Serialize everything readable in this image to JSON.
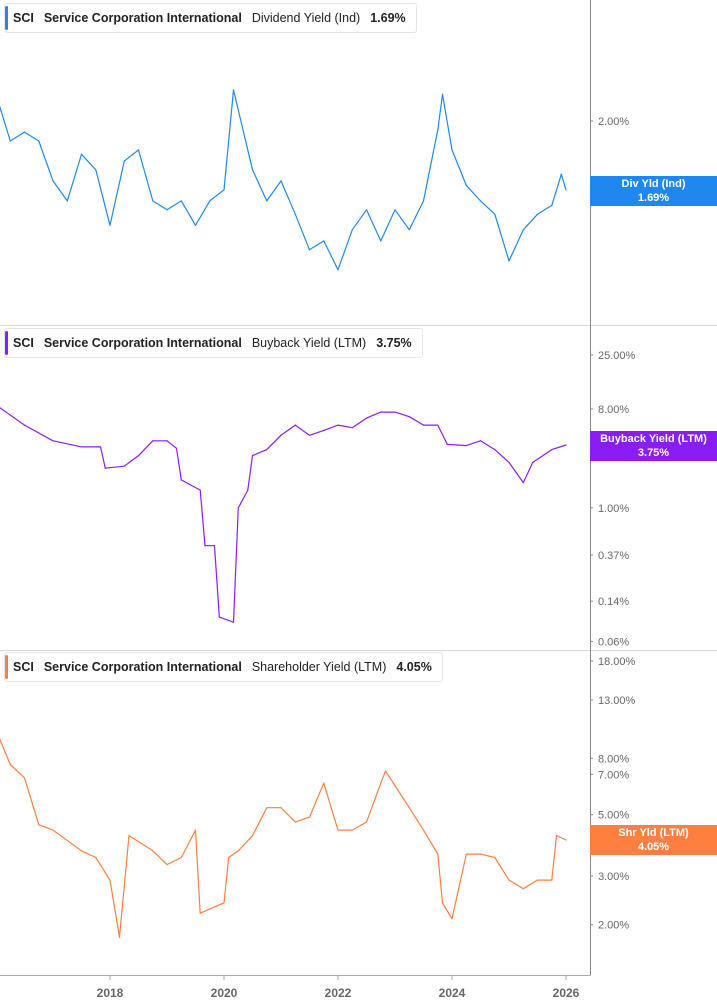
{
  "ticker": "SCI",
  "company": "Service Corporation International",
  "colors": {
    "dividend": "#1e88f0",
    "buyback": "#8a1cf5",
    "shareholder": "#ff7f3f"
  },
  "chart_data": [
    {
      "type": "line",
      "metric": "Dividend Yield (Ind)",
      "current_value": "1.69%",
      "axis_tag": "Div Yld (Ind)",
      "y_scale": "linear",
      "yticks": [
        {
          "v": 2.0,
          "label": "2.00%"
        }
      ],
      "xticks": [
        "2018",
        "2020",
        "2022",
        "2024",
        "2026"
      ],
      "x": [
        "2016-01",
        "2016-04",
        "2016-07",
        "2016-10",
        "2017-01",
        "2017-04",
        "2017-07",
        "2017-10",
        "2018-01",
        "2018-04",
        "2018-07",
        "2018-10",
        "2019-01",
        "2019-04",
        "2019-07",
        "2019-10",
        "2020-01",
        "2020-03",
        "2020-07",
        "2020-10",
        "2021-01",
        "2021-04",
        "2021-07",
        "2021-10",
        "2022-01",
        "2022-04",
        "2022-07",
        "2022-10",
        "2023-01",
        "2023-04",
        "2023-07",
        "2023-10",
        "2023-11",
        "2024-01",
        "2024-04",
        "2024-07",
        "2024-10",
        "2025-01",
        "2025-04",
        "2025-07",
        "2025-10",
        "2025-12",
        "2026-01"
      ],
      "values": [
        2.12,
        1.91,
        1.95,
        1.91,
        1.73,
        1.64,
        1.85,
        1.78,
        1.53,
        1.82,
        1.87,
        1.64,
        1.6,
        1.64,
        1.53,
        1.64,
        1.69,
        2.14,
        1.78,
        1.64,
        1.73,
        1.58,
        1.42,
        1.46,
        1.33,
        1.51,
        1.6,
        1.46,
        1.6,
        1.51,
        1.64,
        1.96,
        2.12,
        1.87,
        1.71,
        1.64,
        1.58,
        1.37,
        1.51,
        1.58,
        1.62,
        1.76,
        1.69
      ]
    },
    {
      "type": "line",
      "metric": "Buyback Yield (LTM)",
      "current_value": "3.75%",
      "axis_tag": "Buyback Yield (LTM)",
      "y_scale": "log",
      "yticks": [
        {
          "v": 25,
          "label": "25.00%"
        },
        {
          "v": 8,
          "label": "8.00%"
        },
        {
          "v": 3,
          "label": "3.00%"
        },
        {
          "v": 1,
          "label": "1.00%"
        },
        {
          "v": 0.37,
          "label": "0.37%"
        },
        {
          "v": 0.14,
          "label": "0.14%"
        },
        {
          "v": 0.06,
          "label": "0.06%"
        }
      ],
      "x": [
        "2016-01",
        "2016-07",
        "2017-01",
        "2017-07",
        "2017-11",
        "2017-12",
        "2018-04",
        "2018-07",
        "2018-10",
        "2019-01",
        "2019-03",
        "2019-04",
        "2019-08",
        "2019-09",
        "2019-11",
        "2019-12",
        "2020-03",
        "2020-04",
        "2020-06",
        "2020-07",
        "2020-10",
        "2021-01",
        "2021-04",
        "2021-07",
        "2021-10",
        "2022-01",
        "2022-04",
        "2022-07",
        "2022-10",
        "2023-01",
        "2023-04",
        "2023-07",
        "2023-10",
        "2023-12",
        "2024-04",
        "2024-07",
        "2024-10",
        "2025-01",
        "2025-04",
        "2025-06",
        "2025-10",
        "2026-01"
      ],
      "values": [
        8.7,
        5.7,
        4.1,
        3.6,
        3.6,
        2.3,
        2.4,
        3.0,
        4.1,
        4.1,
        3.5,
        1.8,
        1.45,
        0.45,
        0.45,
        0.1,
        0.09,
        1.0,
        1.45,
        3.0,
        3.4,
        4.6,
        5.7,
        4.6,
        5.1,
        5.7,
        5.4,
        6.6,
        7.5,
        7.5,
        6.8,
        5.7,
        5.7,
        3.8,
        3.7,
        4.1,
        3.4,
        2.6,
        1.7,
        2.6,
        3.4,
        3.75
      ]
    },
    {
      "type": "line",
      "metric": "Shareholder Yield (LTM)",
      "current_value": "4.05%",
      "axis_tag": "Shr Yld (LTM)",
      "y_scale": "log",
      "yticks": [
        {
          "v": 18,
          "label": "18.00%"
        },
        {
          "v": 13,
          "label": "13.00%"
        },
        {
          "v": 8,
          "label": "8.00%"
        },
        {
          "v": 7,
          "label": "7.00%"
        },
        {
          "v": 5,
          "label": "5.00%"
        },
        {
          "v": 3,
          "label": "3.00%"
        },
        {
          "v": 2,
          "label": "2.00%"
        }
      ],
      "x": [
        "2016-01",
        "2016-04",
        "2016-07",
        "2016-10",
        "2017-01",
        "2017-07",
        "2017-10",
        "2018-01",
        "2018-03",
        "2018-05",
        "2018-10",
        "2019-01",
        "2019-04",
        "2019-07",
        "2019-08",
        "2020-01",
        "2020-02",
        "2020-04",
        "2020-07",
        "2020-10",
        "2021-01",
        "2021-04",
        "2021-07",
        "2021-10",
        "2022-01",
        "2022-04",
        "2022-07",
        "2022-10",
        "2022-11",
        "2023-04",
        "2023-07",
        "2023-10",
        "2023-11",
        "2024-01",
        "2024-04",
        "2024-07",
        "2024-10",
        "2025-01",
        "2025-04",
        "2025-07",
        "2025-10",
        "2025-11",
        "2026-01"
      ],
      "values": [
        10.1,
        7.6,
        6.8,
        4.6,
        4.4,
        3.7,
        3.5,
        2.9,
        1.8,
        4.2,
        3.7,
        3.3,
        3.5,
        4.4,
        2.2,
        2.4,
        3.5,
        3.7,
        4.2,
        5.3,
        5.3,
        4.7,
        4.9,
        6.5,
        4.4,
        4.4,
        4.7,
        6.5,
        7.2,
        5.3,
        4.4,
        3.6,
        2.4,
        2.1,
        3.6,
        3.6,
        3.5,
        2.9,
        2.7,
        2.9,
        2.9,
        4.2,
        4.05
      ]
    }
  ]
}
